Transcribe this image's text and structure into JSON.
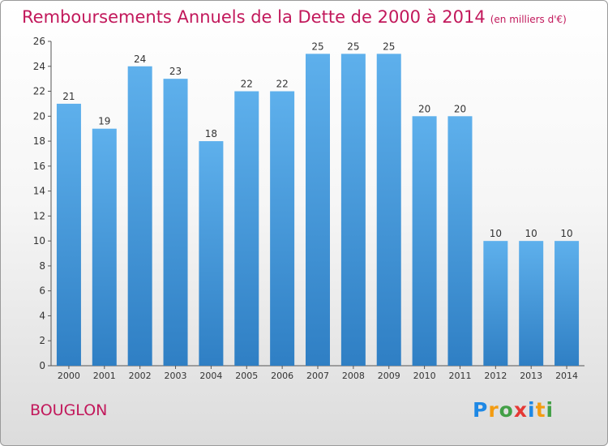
{
  "title": "Remboursements Annuels de la Dette de 2000 à 2014",
  "subtitle": "(en milliers d'€)",
  "place": "BOUGLON",
  "logo": {
    "letters": [
      "P",
      "r",
      "o",
      "x",
      "i",
      "t",
      "i"
    ],
    "colors": [
      "#1e88e5",
      "#f39c12",
      "#43a047",
      "#e53935",
      "#1e88e5",
      "#f39c12",
      "#43a047"
    ]
  },
  "colors": {
    "bar": "#5aa9e6",
    "bar_dark": "#2f7fc4",
    "accent": "#c2185b"
  },
  "chart_data": {
    "type": "bar",
    "title": "Remboursements Annuels de la Dette de 2000 à 2014",
    "subtitle": "(en milliers d'€)",
    "categories": [
      "2000",
      "2001",
      "2002",
      "2003",
      "2004",
      "2005",
      "2006",
      "2007",
      "2008",
      "2009",
      "2010",
      "2011",
      "2012",
      "2013",
      "2014"
    ],
    "values": [
      21,
      19,
      24,
      23,
      18,
      22,
      22,
      25,
      25,
      25,
      20,
      20,
      10,
      10,
      10
    ],
    "ylim": [
      0,
      26
    ],
    "yticks": [
      0,
      2,
      4,
      6,
      8,
      10,
      12,
      14,
      16,
      18,
      20,
      22,
      24,
      26
    ],
    "grid": false,
    "legend": "none"
  }
}
